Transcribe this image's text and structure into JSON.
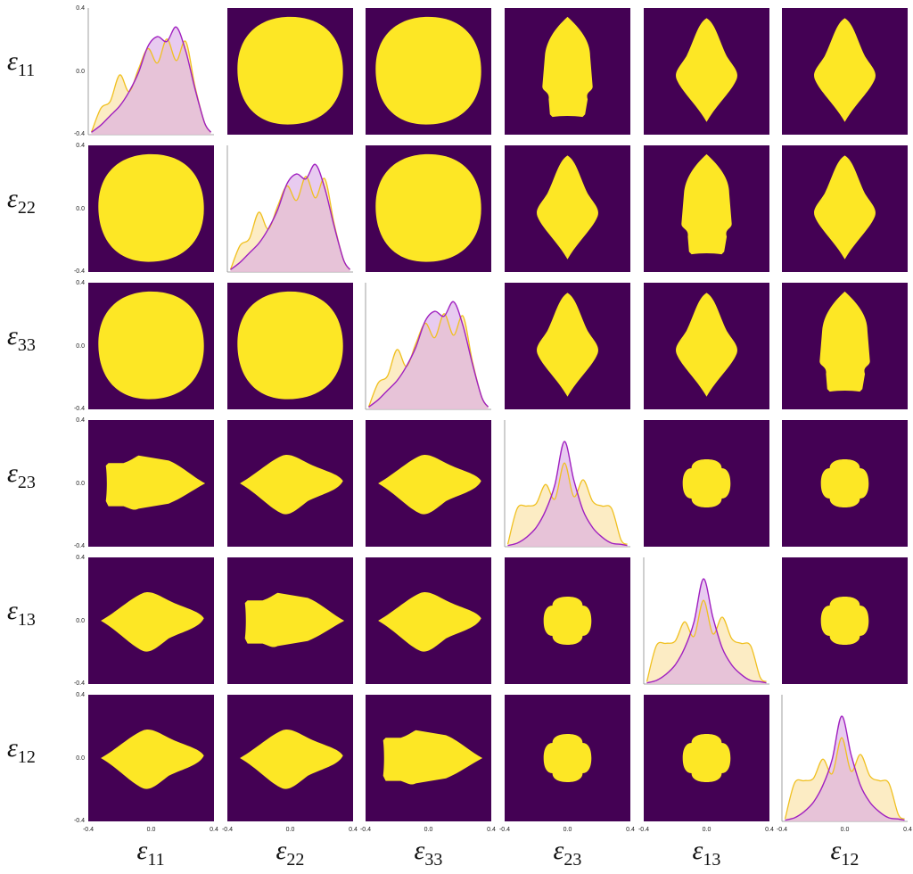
{
  "colors": {
    "background": "#440154",
    "region": "#fde725",
    "marginal_fill_a": "#fbe6b0",
    "marginal_line_a": "#f0c020",
    "marginal_fill_b": "#d9a9e6",
    "marginal_line_b": "#a020c0",
    "marginal_overlap": "#e7b7bf"
  },
  "chart_data": {
    "type": "pair-plot",
    "grid": false,
    "variables": [
      {
        "symbol": "ε",
        "sub": "11"
      },
      {
        "symbol": "ε",
        "sub": "22"
      },
      {
        "symbol": "ε",
        "sub": "33"
      },
      {
        "symbol": "ε",
        "sub": "23"
      },
      {
        "symbol": "ε",
        "sub": "13"
      },
      {
        "symbol": "ε",
        "sub": "12"
      }
    ],
    "xlim": [
      -0.4,
      0.4
    ],
    "ylim": [
      -0.4,
      0.4
    ],
    "ticks": [
      "-0.4",
      "0.0",
      "0.4"
    ],
    "diagonal": {
      "kind": "marginal density",
      "x": [
        -0.38,
        -0.32,
        -0.26,
        -0.2,
        -0.14,
        -0.08,
        -0.02,
        0.04,
        0.1,
        0.16,
        0.22,
        0.28,
        0.34,
        0.38
      ],
      "normal_series_a": [
        0.02,
        0.22,
        0.28,
        0.5,
        0.36,
        0.55,
        0.72,
        0.6,
        0.8,
        0.62,
        0.78,
        0.4,
        0.1,
        0.02
      ],
      "normal_series_b": [
        0.02,
        0.08,
        0.16,
        0.24,
        0.36,
        0.52,
        0.74,
        0.82,
        0.78,
        0.9,
        0.7,
        0.38,
        0.1,
        0.02
      ],
      "shear_series_a": [
        0.02,
        0.32,
        0.34,
        0.36,
        0.52,
        0.4,
        0.7,
        0.42,
        0.56,
        0.38,
        0.34,
        0.32,
        0.06,
        0.02
      ],
      "shear_series_b": [
        0.01,
        0.03,
        0.08,
        0.16,
        0.3,
        0.52,
        0.88,
        0.56,
        0.3,
        0.16,
        0.08,
        0.03,
        0.02,
        0.01
      ]
    },
    "cells": [
      [
        "density",
        "ellipse",
        "ellipse",
        "arrow-up",
        "rhombus-up",
        "rhombus-up"
      ],
      [
        "ellipse",
        "density",
        "ellipse",
        "rhombus-up",
        "arrow-up",
        "rhombus-up"
      ],
      [
        "ellipse",
        "ellipse",
        "density",
        "rhombus-up",
        "rhombus-up",
        "arrow-up"
      ],
      [
        "arrow-right",
        "rhombus-right",
        "rhombus-right",
        "density",
        "cross",
        "cross"
      ],
      [
        "rhombus-right",
        "arrow-right",
        "rhombus-right",
        "cross",
        "density",
        "cross"
      ],
      [
        "rhombus-right",
        "rhombus-right",
        "arrow-right",
        "cross",
        "cross",
        "density"
      ]
    ]
  }
}
